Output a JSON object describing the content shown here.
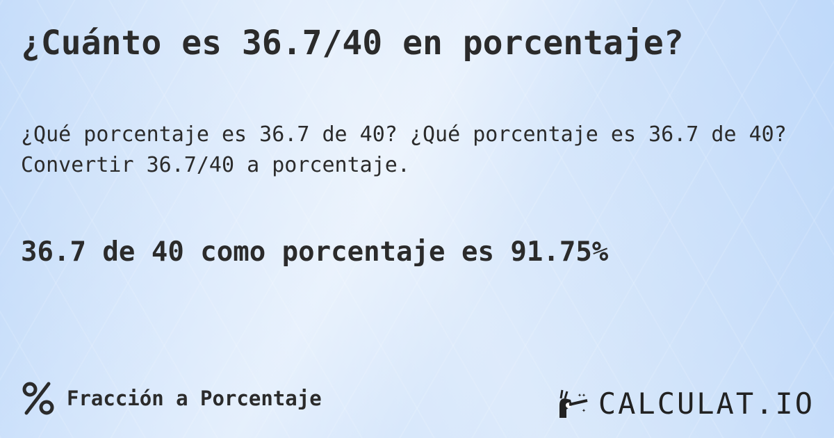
{
  "title": "¿Cuánto es 36.7/40 en porcentaje?",
  "description": "¿Qué porcentaje es 36.7 de 40? ¿Qué porcentaje es 36.7 de 40? Convertir 36.7/40 a porcentaje.",
  "result": "36.7 de 40 como porcentaje es 91.75%",
  "footer": {
    "icon": "percent-icon",
    "label": "Fracción a Porcentaje"
  },
  "logo": {
    "text": "CALCULAT.IO",
    "icon": "magic-hand-wand-icon"
  },
  "colors": {
    "background": "#c5dcf8",
    "text": "#2b2b2b"
  }
}
